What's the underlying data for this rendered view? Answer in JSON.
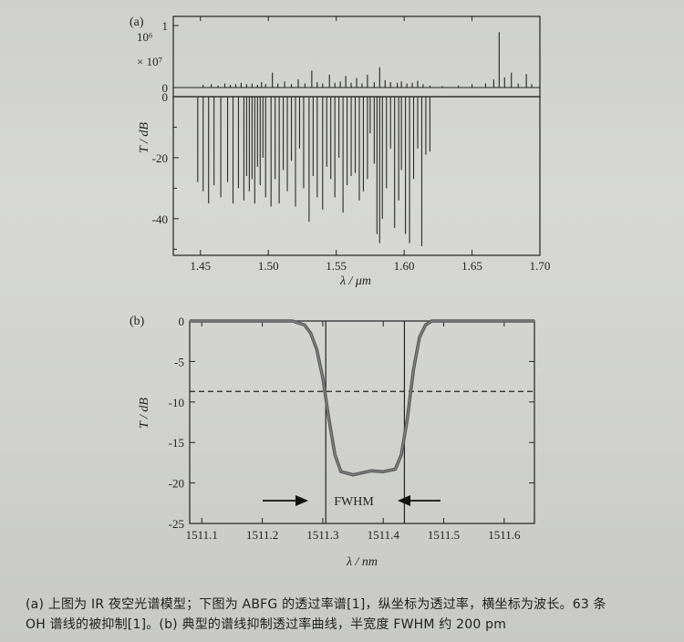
{
  "chart_data": [
    {
      "type": "bar",
      "panel_label": "(a)",
      "xlabel": "λ / μm",
      "xlim": [
        1.43,
        1.7
      ],
      "xticks": [
        "1.45",
        "1.50",
        "1.55",
        "1.60",
        "1.65",
        "1.70"
      ],
      "top": {
        "ylabel_lines": [
          "10⁶",
          "× 10⁷"
        ],
        "yticks": [
          "1",
          "0"
        ],
        "ylim": [
          0,
          1
        ],
        "lines": [
          [
            1.452,
            0.04
          ],
          [
            1.458,
            0.05
          ],
          [
            1.463,
            0.03
          ],
          [
            1.468,
            0.06
          ],
          [
            1.472,
            0.04
          ],
          [
            1.476,
            0.05
          ],
          [
            1.48,
            0.07
          ],
          [
            1.484,
            0.05
          ],
          [
            1.488,
            0.06
          ],
          [
            1.492,
            0.04
          ],
          [
            1.495,
            0.08
          ],
          [
            1.498,
            0.05
          ],
          [
            1.503,
            0.22
          ],
          [
            1.507,
            0.06
          ],
          [
            1.512,
            0.09
          ],
          [
            1.517,
            0.05
          ],
          [
            1.522,
            0.12
          ],
          [
            1.527,
            0.06
          ],
          [
            1.532,
            0.25
          ],
          [
            1.536,
            0.08
          ],
          [
            1.54,
            0.06
          ],
          [
            1.545,
            0.19
          ],
          [
            1.549,
            0.07
          ],
          [
            1.553,
            0.09
          ],
          [
            1.557,
            0.17
          ],
          [
            1.561,
            0.07
          ],
          [
            1.565,
            0.14
          ],
          [
            1.569,
            0.06
          ],
          [
            1.573,
            0.19
          ],
          [
            1.578,
            0.08
          ],
          [
            1.582,
            0.3
          ],
          [
            1.586,
            0.11
          ],
          [
            1.59,
            0.08
          ],
          [
            1.595,
            0.07
          ],
          [
            1.598,
            0.09
          ],
          [
            1.602,
            0.06
          ],
          [
            1.606,
            0.07
          ],
          [
            1.61,
            0.1
          ],
          [
            1.614,
            0.05
          ],
          [
            1.619,
            0.03
          ],
          [
            1.628,
            0.02
          ],
          [
            1.64,
            0.03
          ],
          [
            1.65,
            0.05
          ],
          [
            1.66,
            0.06
          ],
          [
            1.666,
            0.12
          ],
          [
            1.67,
            0.82
          ],
          [
            1.674,
            0.15
          ],
          [
            1.679,
            0.22
          ],
          [
            1.684,
            0.06
          ],
          [
            1.69,
            0.2
          ],
          [
            1.694,
            0.05
          ]
        ]
      },
      "bottom": {
        "ylabel": "T / dB",
        "yticks": [
          "0",
          "-20",
          "-40"
        ],
        "ylim": [
          -52,
          0
        ],
        "lines": [
          [
            1.448,
            -28
          ],
          [
            1.452,
            -31
          ],
          [
            1.456,
            -35
          ],
          [
            1.46,
            -29
          ],
          [
            1.465,
            -33
          ],
          [
            1.47,
            -28
          ],
          [
            1.474,
            -35
          ],
          [
            1.478,
            -30
          ],
          [
            1.482,
            -34
          ],
          [
            1.484,
            -26
          ],
          [
            1.486,
            -31
          ],
          [
            1.488,
            -27
          ],
          [
            1.49,
            -35
          ],
          [
            1.492,
            -23
          ],
          [
            1.494,
            -29
          ],
          [
            1.496,
            -20
          ],
          [
            1.498,
            -33
          ],
          [
            1.502,
            -36
          ],
          [
            1.505,
            -27
          ],
          [
            1.508,
            -35
          ],
          [
            1.511,
            -24
          ],
          [
            1.514,
            -31
          ],
          [
            1.517,
            -21
          ],
          [
            1.52,
            -36
          ],
          [
            1.523,
            -17
          ],
          [
            1.526,
            -30
          ],
          [
            1.53,
            -41
          ],
          [
            1.533,
            -26
          ],
          [
            1.536,
            -33
          ],
          [
            1.54,
            -37
          ],
          [
            1.543,
            -23
          ],
          [
            1.546,
            -27
          ],
          [
            1.549,
            -33
          ],
          [
            1.552,
            -20
          ],
          [
            1.555,
            -38
          ],
          [
            1.558,
            -29
          ],
          [
            1.561,
            -26
          ],
          [
            1.564,
            -25
          ],
          [
            1.567,
            -34
          ],
          [
            1.57,
            -31
          ],
          [
            1.573,
            -27
          ],
          [
            1.575,
            -12
          ],
          [
            1.578,
            -22
          ],
          [
            1.58,
            -45
          ],
          [
            1.582,
            -48
          ],
          [
            1.584,
            -40
          ],
          [
            1.587,
            -30
          ],
          [
            1.59,
            -17
          ],
          [
            1.593,
            -43
          ],
          [
            1.596,
            -34
          ],
          [
            1.598,
            -24
          ],
          [
            1.601,
            -45
          ],
          [
            1.604,
            -48
          ],
          [
            1.607,
            -27
          ],
          [
            1.61,
            -17
          ],
          [
            1.613,
            -49
          ],
          [
            1.616,
            -19
          ],
          [
            1.619,
            -18
          ]
        ]
      }
    },
    {
      "type": "line",
      "panel_label": "(b)",
      "xlabel": "λ / nm",
      "ylabel": "T / dB",
      "xlim": [
        1511.08,
        1511.65
      ],
      "ylim": [
        -25,
        0
      ],
      "xticks": [
        "1511.1",
        "1511.2",
        "1511.3",
        "1511.4",
        "1511.5",
        "1511.6"
      ],
      "yticks": [
        "0",
        "-5",
        "-10",
        "-15",
        "-20",
        "-25"
      ],
      "series": [
        {
          "x": [
            1511.08,
            1511.25,
            1511.27,
            1511.28,
            1511.29,
            1511.3,
            1511.31,
            1511.32,
            1511.33,
            1511.35,
            1511.38,
            1511.4,
            1511.42,
            1511.43,
            1511.44,
            1511.45,
            1511.46,
            1511.47,
            1511.48,
            1511.65
          ],
          "y": [
            0,
            0,
            -0.5,
            -1.5,
            -3.5,
            -7,
            -12,
            -16.5,
            -18.6,
            -19.0,
            -18.5,
            -18.6,
            -18.3,
            -16.5,
            -12,
            -6,
            -2,
            -0.5,
            0,
            0
          ]
        }
      ],
      "vlines": [
        1511.305,
        1511.435
      ],
      "hline": -8.7,
      "annotation": "FWHM"
    }
  ],
  "caption": {
    "line1": "(a) 上图为 IR 夜空光谱模型；下图为 ABFG 的透过率谱[1]，纵坐标为透过率，横坐标为波长。63 条",
    "line2": "OH 谱线的被抑制[1]。(b) 典型的谱线抑制透过率曲线，半宽度 FWHM 约 200 pm"
  }
}
